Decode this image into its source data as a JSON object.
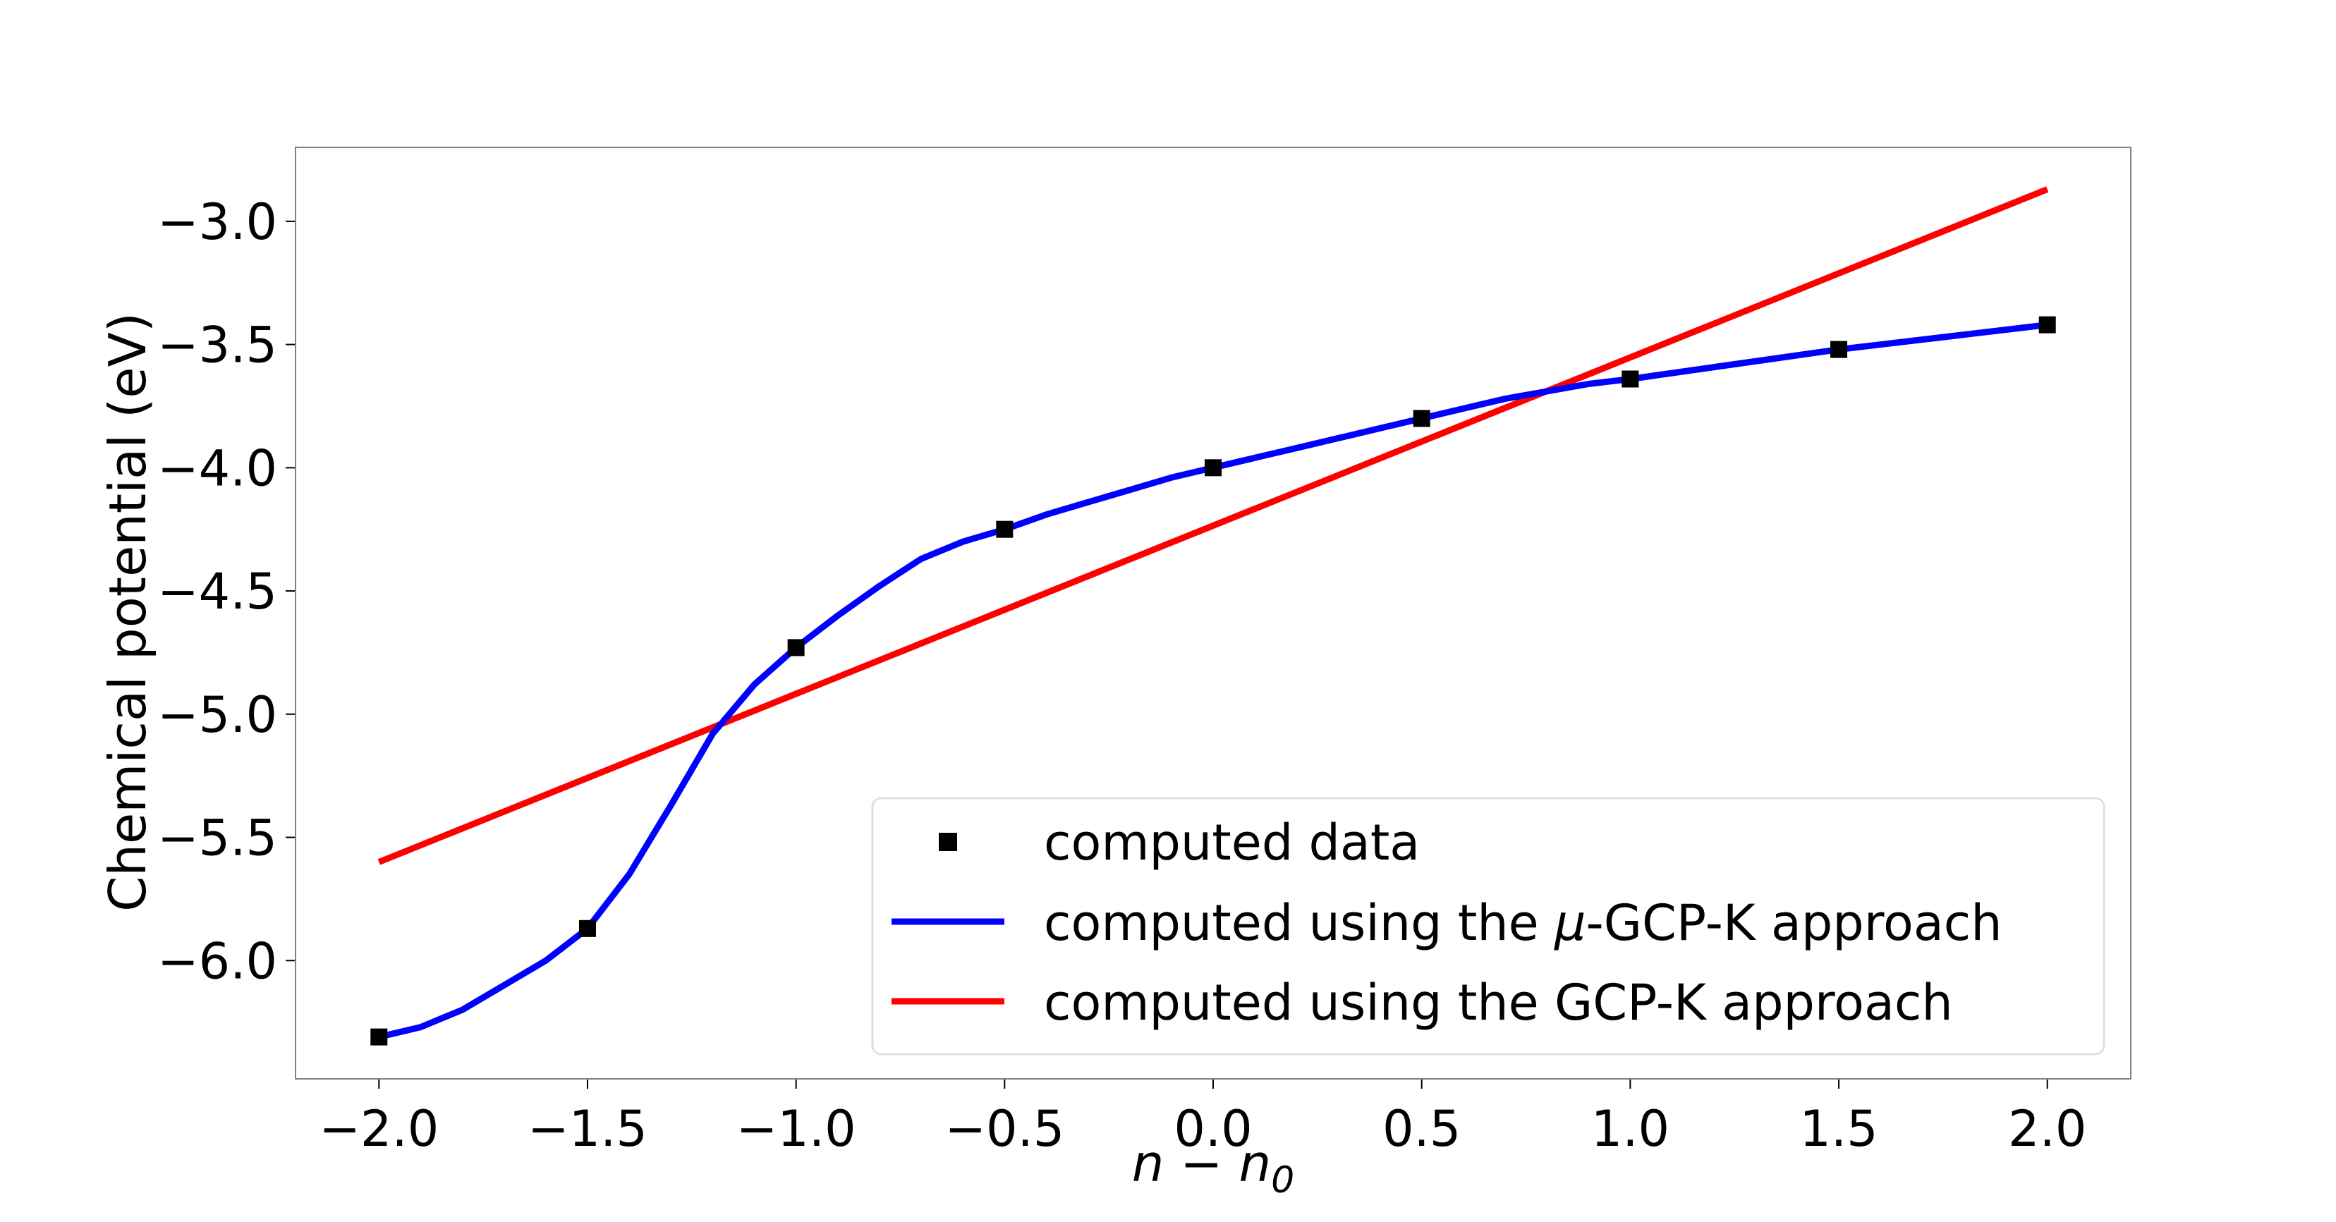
{
  "chart_data": {
    "type": "line",
    "title": "",
    "xlabel": "n − n",
    "xlabel_subscript": "0",
    "ylabel": "Chemical potential (eV)",
    "xlim": [
      -2.2,
      2.2
    ],
    "ylim": [
      -6.48,
      -2.7
    ],
    "xticks": [
      -2.0,
      -1.5,
      -1.0,
      -0.5,
      0.0,
      0.5,
      1.0,
      1.5,
      2.0
    ],
    "xtick_labels": [
      "−2.0",
      "−1.5",
      "−1.0",
      "−0.5",
      "0.0",
      "0.5",
      "1.0",
      "1.5",
      "2.0"
    ],
    "yticks": [
      -3.0,
      -3.5,
      -4.0,
      -4.5,
      -5.0,
      -5.5,
      -6.0
    ],
    "ytick_labels": [
      "−3.0",
      "−3.5",
      "−4.0",
      "−4.5",
      "−5.0",
      "−5.5",
      "−6.0"
    ],
    "grid": false,
    "legend_position": "bottom-right",
    "series": [
      {
        "name": "computed data",
        "kind": "markers",
        "color": "#000000",
        "x": [
          -2.0,
          -1.5,
          -1.0,
          -0.5,
          0.0,
          0.5,
          1.0,
          1.5,
          2.0
        ],
        "y": [
          -6.31,
          -5.87,
          -4.73,
          -4.25,
          -4.0,
          -3.8,
          -3.64,
          -3.52,
          -3.42
        ]
      },
      {
        "name": "computed using the ",
        "name_symbol": "μ",
        "name_rest": "-GCP-K approach",
        "kind": "line",
        "color": "#0000ff",
        "x": [
          -2.0,
          -1.9,
          -1.8,
          -1.7,
          -1.6,
          -1.5,
          -1.4,
          -1.3,
          -1.2,
          -1.1,
          -1.0,
          -0.9,
          -0.8,
          -0.7,
          -0.6,
          -0.5,
          -0.4,
          -0.3,
          -0.2,
          -0.1,
          0.0,
          0.1,
          0.2,
          0.3,
          0.4,
          0.5,
          0.6,
          0.7,
          0.8,
          0.9,
          1.0,
          1.25,
          1.5,
          1.75,
          2.0
        ],
        "y": [
          -6.31,
          -6.27,
          -6.2,
          -6.1,
          -6.0,
          -5.87,
          -5.65,
          -5.37,
          -5.08,
          -4.88,
          -4.73,
          -4.6,
          -4.48,
          -4.37,
          -4.3,
          -4.25,
          -4.19,
          -4.14,
          -4.09,
          -4.04,
          -4.0,
          -3.96,
          -3.92,
          -3.88,
          -3.84,
          -3.8,
          -3.76,
          -3.72,
          -3.69,
          -3.66,
          -3.64,
          -3.58,
          -3.52,
          -3.47,
          -3.42
        ]
      },
      {
        "name": "computed using the GCP-K approach",
        "kind": "line",
        "color": "#ff0000",
        "x": [
          -2.0,
          2.0
        ],
        "y": [
          -5.6,
          -2.87
        ]
      }
    ]
  }
}
